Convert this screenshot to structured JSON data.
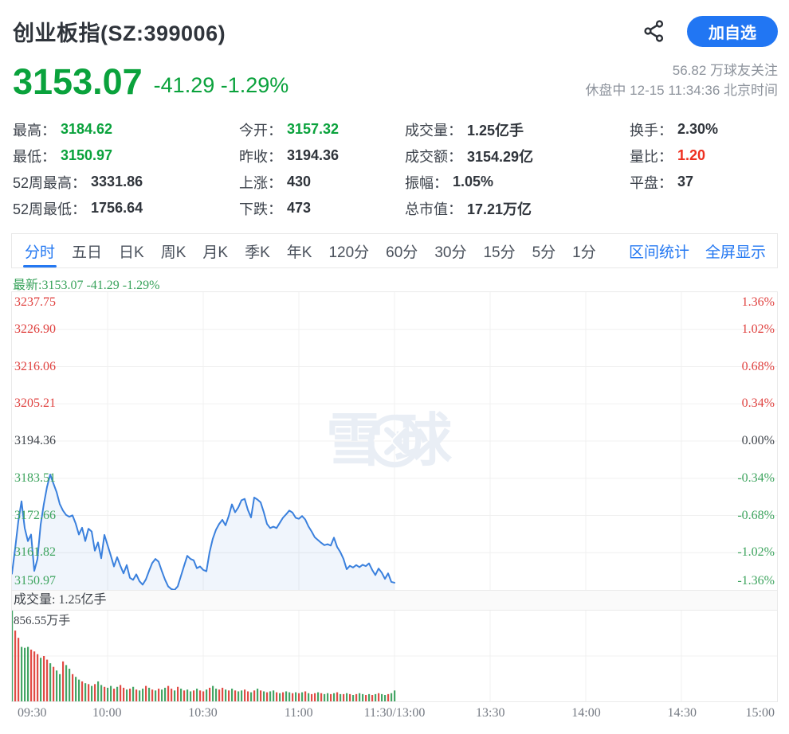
{
  "palette": {
    "green": "#0aa23c",
    "red": "#ee2f1f",
    "dark": "#2f343b",
    "blue": "#2478f2",
    "gray": "#8d939c",
    "axis_up": "#e04240",
    "axis_down": "#3da45e",
    "axis_flat": "#3f444b",
    "latest_green": "#3aa35c",
    "line": "#3a80dd",
    "fill": "rgba(58,128,221,0.08)",
    "grid": "#f0f0f0",
    "vol_red": "#e14b45",
    "vol_green": "#44a565",
    "watermark": "#e9eef5"
  },
  "header": {
    "title": "创业板指(SZ:399006)",
    "add_watchlist_label": "加自选"
  },
  "quote": {
    "price": "3153.07",
    "change_text": "-41.29 -1.29%",
    "followers": "56.82 万球友关注",
    "status_line": "休盘中 12-15 11:34:36 北京时间"
  },
  "stats": {
    "columns": [
      {
        "items": [
          {
            "label": "最高：",
            "value": "3184.62",
            "color": "green"
          },
          {
            "label": "最低：",
            "value": "3150.97",
            "color": "green"
          },
          {
            "label": "52周最高：",
            "value": "3331.86",
            "color": "dark"
          },
          {
            "label": "52周最低：",
            "value": "1756.64",
            "color": "dark"
          }
        ]
      },
      {
        "items": [
          {
            "label": "今开：",
            "value": "3157.32",
            "color": "green"
          },
          {
            "label": "昨收：",
            "value": "3194.36",
            "color": "dark"
          },
          {
            "label": "上涨：",
            "value": "430",
            "color": "dark"
          },
          {
            "label": "下跌：",
            "value": "473",
            "color": "dark"
          }
        ]
      },
      {
        "items": [
          {
            "label": "成交量：",
            "value": "1.25亿手",
            "color": "dark"
          },
          {
            "label": "成交额：",
            "value": "3154.29亿",
            "color": "dark"
          },
          {
            "label": "振幅：",
            "value": "1.05%",
            "color": "dark"
          },
          {
            "label": "总市值：",
            "value": "17.21万亿",
            "color": "dark"
          }
        ]
      },
      {
        "items": [
          {
            "label": "换手：",
            "value": "2.30%",
            "color": "dark"
          },
          {
            "label": "量比：",
            "value": "1.20",
            "color": "red"
          },
          {
            "label": "平盘：",
            "value": "37",
            "color": "dark"
          }
        ]
      }
    ]
  },
  "toolbar": {
    "tabs": [
      {
        "label": "分时",
        "active": true
      },
      {
        "label": "五日",
        "active": false
      },
      {
        "label": "日K",
        "active": false
      },
      {
        "label": "周K",
        "active": false
      },
      {
        "label": "月K",
        "active": false
      },
      {
        "label": "季K",
        "active": false
      },
      {
        "label": "年K",
        "active": false
      },
      {
        "label": "120分",
        "active": false
      },
      {
        "label": "60分",
        "active": false
      },
      {
        "label": "30分",
        "active": false
      },
      {
        "label": "15分",
        "active": false
      },
      {
        "label": "5分",
        "active": false
      },
      {
        "label": "1分",
        "active": false
      }
    ],
    "actions": [
      {
        "label": "区间统计"
      },
      {
        "label": "全屏显示"
      }
    ]
  },
  "watermark": {
    "text": "雪球"
  },
  "chart_data": {
    "type": "line",
    "title": "分时",
    "latest_text": "最新:3153.07 -41.29 -1.29%",
    "prev_close": 3194.36,
    "y_range": [
      3150.97,
      3237.75
    ],
    "x_divisions": 8,
    "session_minutes_total": 240,
    "x_labels": [
      "09:30",
      "10:00",
      "10:30",
      "11:00",
      "11:30/13:00",
      "13:30",
      "14:00",
      "14:30",
      "15:00"
    ],
    "y_left_labels": [
      {
        "t": "3237.75",
        "c": "axis_up"
      },
      {
        "t": "3226.90",
        "c": "axis_up"
      },
      {
        "t": "3216.06",
        "c": "axis_up"
      },
      {
        "t": "3205.21",
        "c": "axis_up"
      },
      {
        "t": "3194.36",
        "c": "axis_flat"
      },
      {
        "t": "3183.51",
        "c": "axis_down"
      },
      {
        "t": "3172.66",
        "c": "axis_down"
      },
      {
        "t": "3161.82",
        "c": "axis_down"
      },
      {
        "t": "3150.97",
        "c": "axis_down"
      }
    ],
    "y_right_labels": [
      {
        "t": "1.36%",
        "c": "axis_up"
      },
      {
        "t": "1.02%",
        "c": "axis_up"
      },
      {
        "t": "0.68%",
        "c": "axis_up"
      },
      {
        "t": "0.34%",
        "c": "axis_up"
      },
      {
        "t": "0.00%",
        "c": "axis_flat"
      },
      {
        "t": "-0.34%",
        "c": "axis_down"
      },
      {
        "t": "-0.68%",
        "c": "axis_down"
      },
      {
        "t": "-1.02%",
        "c": "axis_down"
      },
      {
        "t": "-1.36%",
        "c": "axis_down"
      }
    ],
    "prices": [
      3155.7,
      3163,
      3171,
      3176.8,
      3169,
      3165.2,
      3167.1,
      3156.5,
      3160,
      3170,
      3176,
      3181,
      3184.62,
      3182,
      3179.5,
      3176,
      3174.1,
      3172.8,
      3172.3,
      3172.7,
      3170.3,
      3167.1,
      3169.1,
      3165.2,
      3168.8,
      3168.0,
      3162.4,
      3164.8,
      3160.2,
      3167.0,
      3164.0,
      3161.0,
      3157.8,
      3160.5,
      3158.0,
      3155.8,
      3158.2,
      3154.5,
      3153.9,
      3155.5,
      3153.5,
      3152.5,
      3154.0,
      3156.5,
      3158.8,
      3160.0,
      3159.2,
      3156.5,
      3154.0,
      3152.0,
      3151.2,
      3150.97,
      3152.0,
      3155.0,
      3158.0,
      3160.9,
      3160.0,
      3159.6,
      3157.3,
      3157.8,
      3156.8,
      3156.4,
      3162.0,
      3165.9,
      3168.5,
      3170.2,
      3171.4,
      3169.8,
      3172.5,
      3175.9,
      3173.6,
      3175.0,
      3177.1,
      3177.5,
      3174.3,
      3172.1,
      3177.9,
      3177.3,
      3176.5,
      3173.6,
      3170.2,
      3169.0,
      3169.4,
      3169.0,
      3170.5,
      3172.0,
      3173.0,
      3174.1,
      3173.5,
      3172.0,
      3171.7,
      3172.5,
      3171.5,
      3169.5,
      3168.0,
      3166.3,
      3165.5,
      3164.7,
      3164.0,
      3164.3,
      3163.9,
      3166.2,
      3163.5,
      3162.0,
      3160.0,
      3157.0,
      3158.0,
      3157.5,
      3158.2,
      3157.6,
      3158.3,
      3157.9,
      3158.7,
      3156.8,
      3155.3,
      3157.2,
      3156.0,
      3154.2,
      3155.8,
      3153.3,
      3153.07
    ],
    "volume": {
      "title": "成交量: 1.25亿手",
      "max_label": "856.55万手",
      "heights": [
        100,
        78,
        70,
        60,
        59,
        60,
        57,
        55,
        52,
        48,
        50,
        46,
        42,
        38,
        34,
        30,
        44,
        40,
        36,
        30,
        27,
        24,
        22,
        20,
        19,
        17,
        19,
        22,
        18,
        16,
        15,
        17,
        14,
        16,
        18,
        15,
        13,
        14,
        16,
        13,
        12,
        14,
        17,
        15,
        13,
        12,
        14,
        13,
        15,
        17,
        14,
        12,
        16,
        14,
        12,
        13,
        11,
        12,
        14,
        12,
        11,
        13,
        15,
        17,
        14,
        13,
        15,
        13,
        12,
        14,
        12,
        11,
        12,
        13,
        11,
        10,
        12,
        14,
        12,
        11,
        10,
        11,
        12,
        10,
        9,
        10,
        11,
        10,
        9,
        10,
        9,
        10,
        11,
        9,
        8,
        9,
        10,
        9,
        8,
        9,
        8,
        9,
        10,
        8,
        8,
        9,
        8,
        7,
        8,
        9,
        8,
        7,
        8,
        7,
        8,
        9,
        8,
        7,
        8,
        9,
        12
      ],
      "colors": "grrgggrrrgrrgrggrggrggrgrgrggrggrgrrgrgrggrgrgrggrrgrgrggrgrrgrggrrgrgrggrrgrgrgrggrgrggrgrgrgrrgrggrgrgrgrgrggrgrgrggrgg"
    }
  }
}
